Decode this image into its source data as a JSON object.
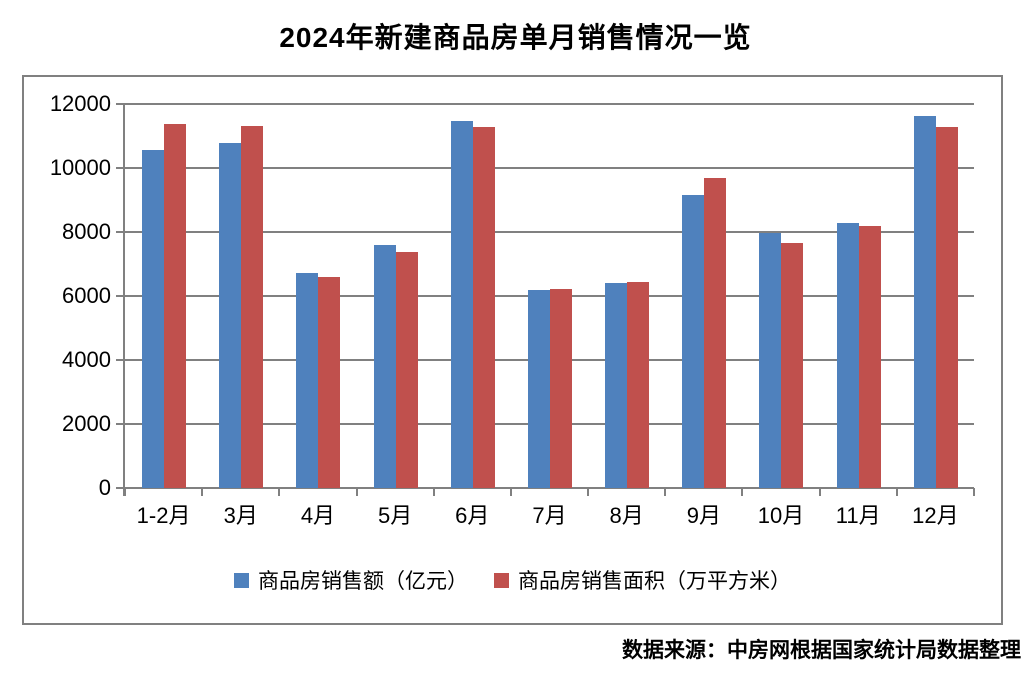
{
  "title": "2024年新建商品房单月销售情况一览",
  "source_note": "数据来源：中房网根据国家统计局数据整理",
  "colors": {
    "sales_amount_blue": "#4F81BD",
    "sales_area_red": "#C0504D",
    "axis_gray": "#808080",
    "chart_border": "#808080",
    "background": "#FFFFFF",
    "text": "#000000"
  },
  "chart_data": {
    "type": "bar",
    "title": "2024年新建商品房单月销售情况一览",
    "categories": [
      "1-2月",
      "3月",
      "4月",
      "5月",
      "6月",
      "7月",
      "8月",
      "9月",
      "10月",
      "11月",
      "12月"
    ],
    "series": [
      {
        "name": "商品房销售额（亿元）",
        "color": "#4F81BD",
        "values": [
          10566,
          10789,
          6712,
          7598,
          11468,
          6197,
          6393,
          9157,
          7975,
          8270,
          11625
        ]
      },
      {
        "name": "商品房销售面积（万平方米）",
        "color": "#C0504D",
        "values": [
          11369,
          11299,
          6584,
          7390,
          11274,
          6233,
          6453,
          9682,
          7646,
          8188,
          11267
        ]
      }
    ],
    "xlabel": "",
    "ylabel": "",
    "ylim": [
      0,
      12000
    ],
    "yticks": [
      0,
      2000,
      4000,
      6000,
      8000,
      10000,
      12000
    ],
    "grid": true,
    "legend_position": "bottom"
  }
}
